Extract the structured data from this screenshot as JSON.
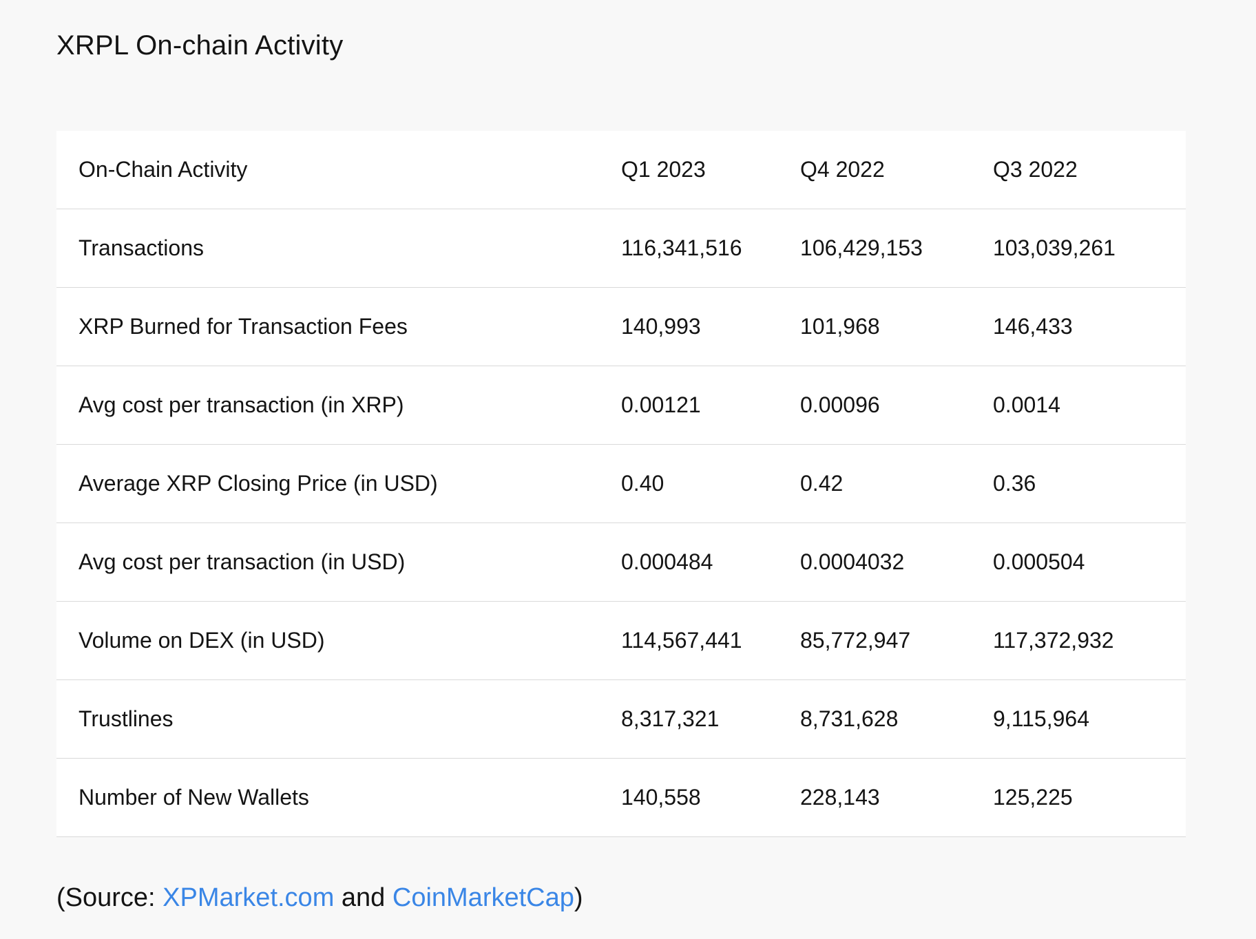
{
  "page": {
    "title": "XRPL On-chain Activity"
  },
  "table": {
    "headers": [
      "On-Chain Activity",
      "Q1 2023",
      "Q4 2022",
      "Q3 2022"
    ],
    "rows": [
      [
        "Transactions",
        "116,341,516",
        "106,429,153",
        "103,039,261"
      ],
      [
        "XRP Burned for Transaction Fees",
        "140,993",
        "101,968",
        "146,433"
      ],
      [
        "Avg cost per transaction (in XRP)",
        "0.00121",
        "0.00096",
        "0.0014"
      ],
      [
        "Average XRP Closing Price (in USD)",
        "0.40",
        "0.42",
        "0.36"
      ],
      [
        "Avg cost per transaction (in USD)",
        "0.000484",
        "0.0004032",
        "0.000504"
      ],
      [
        "Volume on DEX (in USD)",
        "114,567,441",
        "85,772,947",
        "117,372,932"
      ],
      [
        "Trustlines",
        "8,317,321",
        "8,731,628",
        "9,115,964"
      ],
      [
        "Number of New Wallets",
        "140,558",
        "228,143",
        "125,225"
      ]
    ]
  },
  "source": {
    "prefix": "(Source: ",
    "link1": "XPMarket.com",
    "middle": " and ",
    "link2": "CoinMarketCap",
    "suffix": ")"
  },
  "colors": {
    "background": "#f8f8f8",
    "table_background": "#ffffff",
    "link": "#3a86e6",
    "divider": "#d9d9d9"
  }
}
